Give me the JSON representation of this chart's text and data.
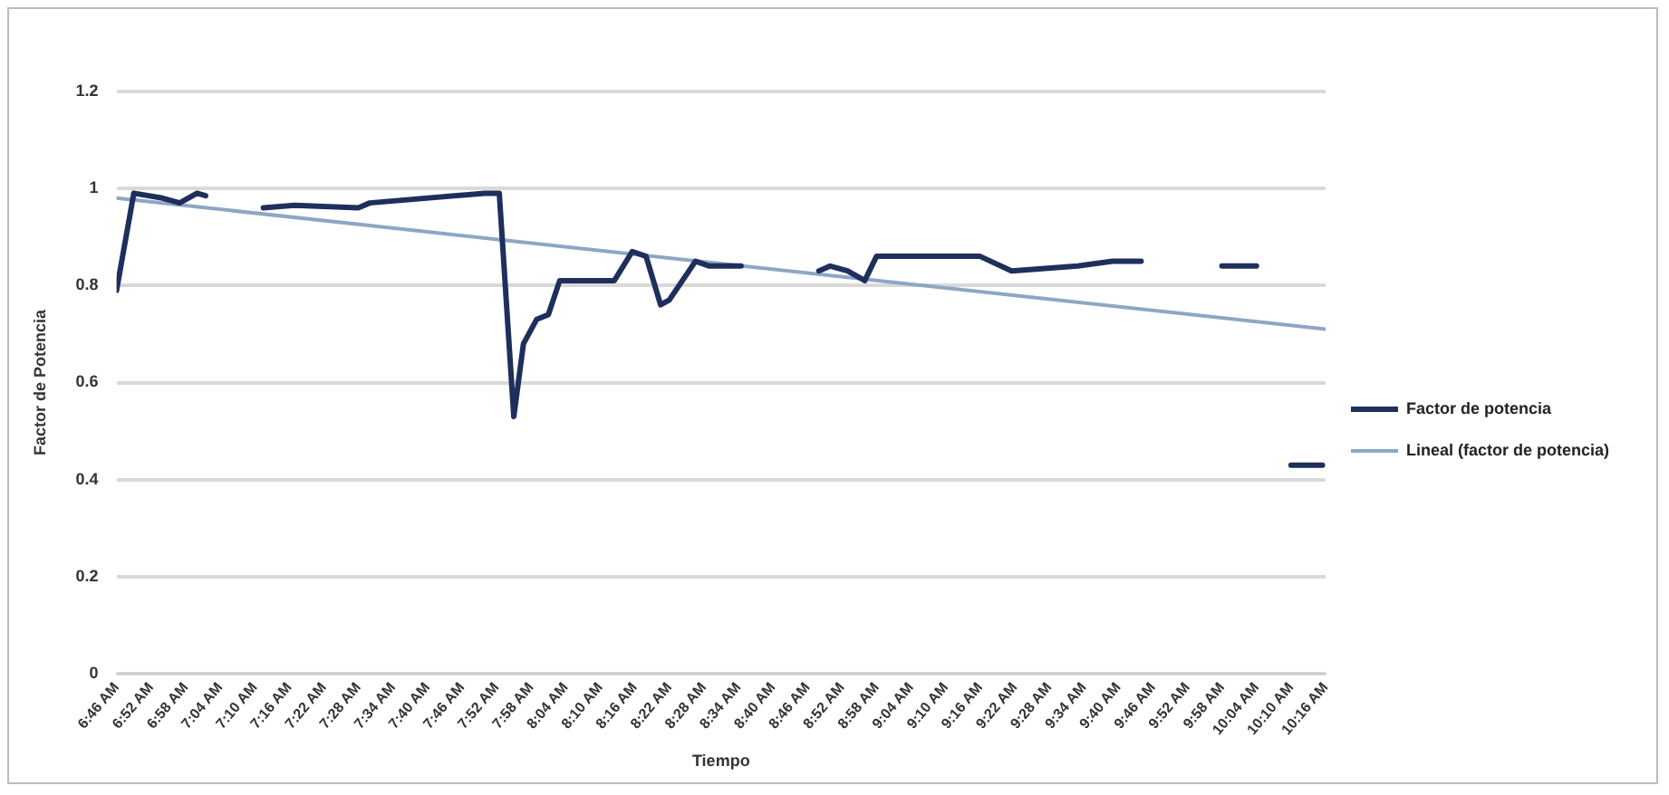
{
  "chart_data": {
    "type": "line",
    "xlabel": "Tiempo",
    "ylabel": "Factor de Potencia",
    "ylim": [
      0,
      1.2
    ],
    "yticks": [
      0,
      0.2,
      0.4,
      0.6,
      0.8,
      1,
      1.2
    ],
    "xlim": [
      6.767,
      10.267
    ],
    "xticks": [
      {
        "value": 6.767,
        "label": "6:46 AM"
      },
      {
        "value": 6.867,
        "label": "6:52 AM"
      },
      {
        "value": 6.967,
        "label": "6:58 AM"
      },
      {
        "value": 7.067,
        "label": "7:04 AM"
      },
      {
        "value": 7.167,
        "label": "7:10 AM"
      },
      {
        "value": 7.267,
        "label": "7:16 AM"
      },
      {
        "value": 7.367,
        "label": "7:22 AM"
      },
      {
        "value": 7.467,
        "label": "7:28 AM"
      },
      {
        "value": 7.567,
        "label": "7:34 AM"
      },
      {
        "value": 7.667,
        "label": "7:40 AM"
      },
      {
        "value": 7.767,
        "label": "7:46 AM"
      },
      {
        "value": 7.867,
        "label": "7:52 AM"
      },
      {
        "value": 7.967,
        "label": "7:58 AM"
      },
      {
        "value": 8.067,
        "label": "8:04 AM"
      },
      {
        "value": 8.167,
        "label": "8:10 AM"
      },
      {
        "value": 8.267,
        "label": "8:16 AM"
      },
      {
        "value": 8.367,
        "label": "8:22 AM"
      },
      {
        "value": 8.467,
        "label": "8:28 AM"
      },
      {
        "value": 8.567,
        "label": "8:34 AM"
      },
      {
        "value": 8.667,
        "label": "8:40 AM"
      },
      {
        "value": 8.767,
        "label": "8:46 AM"
      },
      {
        "value": 8.867,
        "label": "8:52 AM"
      },
      {
        "value": 8.967,
        "label": "8:58 AM"
      },
      {
        "value": 9.067,
        "label": "9:04 AM"
      },
      {
        "value": 9.167,
        "label": "9:10 AM"
      },
      {
        "value": 9.267,
        "label": "9:16 AM"
      },
      {
        "value": 9.367,
        "label": "9:22 AM"
      },
      {
        "value": 9.467,
        "label": "9:28 AM"
      },
      {
        "value": 9.567,
        "label": "9:34 AM"
      },
      {
        "value": 9.667,
        "label": "9:40 AM"
      },
      {
        "value": 9.767,
        "label": "9:46 AM"
      },
      {
        "value": 9.867,
        "label": "9:52 AM"
      },
      {
        "value": 9.967,
        "label": "9:58 AM"
      },
      {
        "value": 10.067,
        "label": "10:04 AM"
      },
      {
        "value": 10.167,
        "label": "10:10 AM"
      },
      {
        "value": 10.267,
        "label": "10:16 AM"
      }
    ],
    "grid": "y",
    "legend": "right",
    "marker": "none",
    "line_style": "solid",
    "series": [
      {
        "name": "Factor de potencia",
        "color": "#1f2f5c",
        "x": [
          6.767,
          6.817,
          6.9,
          6.95,
          7.0,
          7.025,
          7.1,
          7.192,
          7.283,
          7.467,
          7.5,
          7.833,
          7.875,
          7.917,
          7.945,
          7.983,
          8.017,
          8.05,
          8.1,
          8.208,
          8.26,
          8.3,
          8.342,
          8.367,
          8.443,
          8.483,
          8.575,
          8.7,
          8.8,
          8.833,
          8.883,
          8.933,
          8.967,
          9.267,
          9.358,
          9.55,
          9.65,
          9.733,
          9.85,
          9.967,
          10.067,
          10.1,
          10.167,
          10.258
        ],
        "values": [
          0.79,
          0.99,
          0.98,
          0.97,
          0.99,
          0.985,
          null,
          0.96,
          0.965,
          0.96,
          0.97,
          0.99,
          0.99,
          0.53,
          0.68,
          0.73,
          0.74,
          0.81,
          0.81,
          0.81,
          0.87,
          0.86,
          0.76,
          0.77,
          0.85,
          0.84,
          0.84,
          null,
          0.83,
          0.84,
          0.83,
          0.81,
          0.86,
          0.86,
          0.83,
          0.84,
          0.85,
          0.85,
          null,
          0.84,
          0.84,
          null,
          0.43,
          0.43
        ]
      },
      {
        "name": "Lineal (factor de potencia)",
        "color": "#8ea6c6",
        "x": [
          6.767,
          10.267
        ],
        "values": [
          0.98,
          0.71
        ]
      }
    ]
  }
}
